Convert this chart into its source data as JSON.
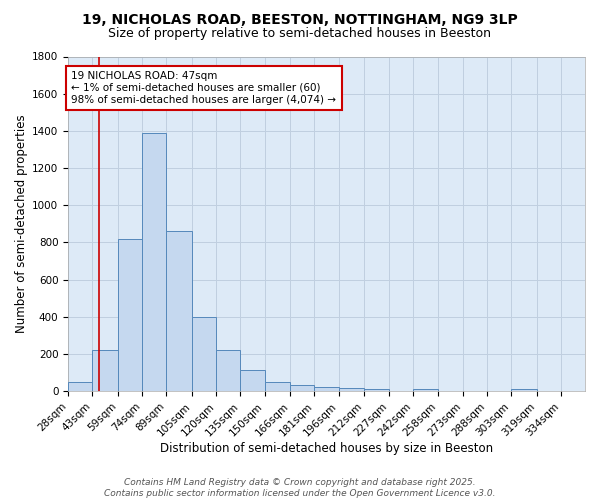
{
  "title_line1": "19, NICHOLAS ROAD, BEESTON, NOTTINGHAM, NG9 3LP",
  "title_line2": "Size of property relative to semi-detached houses in Beeston",
  "xlabel": "Distribution of semi-detached houses by size in Beeston",
  "ylabel": "Number of semi-detached properties",
  "bin_labels": [
    "28sqm",
    "43sqm",
    "59sqm",
    "74sqm",
    "89sqm",
    "105sqm",
    "120sqm",
    "135sqm",
    "150sqm",
    "166sqm",
    "181sqm",
    "196sqm",
    "212sqm",
    "227sqm",
    "242sqm",
    "258sqm",
    "273sqm",
    "288sqm",
    "303sqm",
    "319sqm",
    "334sqm"
  ],
  "bin_edges": [
    28,
    43,
    59,
    74,
    89,
    105,
    120,
    135,
    150,
    166,
    181,
    196,
    212,
    227,
    242,
    258,
    273,
    288,
    303,
    319,
    334
  ],
  "bar_heights": [
    50,
    220,
    820,
    1390,
    860,
    400,
    220,
    115,
    50,
    35,
    25,
    15,
    10,
    0,
    10,
    0,
    0,
    0,
    10,
    0,
    0
  ],
  "bar_facecolor": "#c5d8ef",
  "bar_edgecolor": "#5588bb",
  "grid_color": "#c0cfe0",
  "bg_color": "#ddeaf7",
  "red_line_x": 47,
  "red_line_color": "#cc0000",
  "annotation_text": "19 NICHOLAS ROAD: 47sqm\n← 1% of semi-detached houses are smaller (60)\n98% of semi-detached houses are larger (4,074) →",
  "ylim": [
    0,
    1800
  ],
  "yticks": [
    0,
    200,
    400,
    600,
    800,
    1000,
    1200,
    1400,
    1600,
    1800
  ],
  "footer_line1": "Contains HM Land Registry data © Crown copyright and database right 2025.",
  "footer_line2": "Contains public sector information licensed under the Open Government Licence v3.0.",
  "title_fontsize": 10,
  "subtitle_fontsize": 9,
  "axis_label_fontsize": 8.5,
  "tick_fontsize": 7.5,
  "annotation_fontsize": 7.5,
  "footer_fontsize": 6.5
}
